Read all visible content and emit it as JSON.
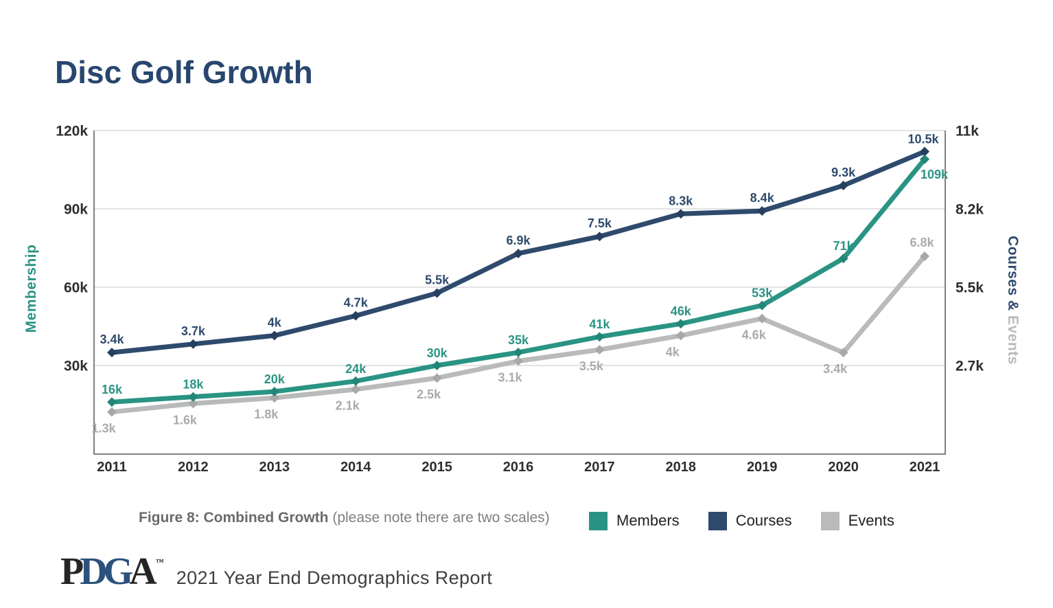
{
  "page": {
    "title": "Disc Golf Growth"
  },
  "chart_data": {
    "type": "line",
    "title": "Disc Golf Growth",
    "x_labels": [
      "2011",
      "2012",
      "2013",
      "2014",
      "2015",
      "2016",
      "2017",
      "2018",
      "2019",
      "2020",
      "2021"
    ],
    "series": [
      {
        "name": "Members",
        "axis": "left",
        "color": "#2a9484",
        "marker_color": "#238578",
        "label_color": "#2a9484",
        "values": [
          16,
          18,
          20,
          24,
          30,
          35,
          41,
          46,
          53,
          71,
          109
        ],
        "labels": [
          "16k",
          "18k",
          "20k",
          "24k",
          "30k",
          "35k",
          "41k",
          "46k",
          "53k",
          "71k",
          "109k"
        ]
      },
      {
        "name": "Courses",
        "axis": "right",
        "color": "#2e4a6c",
        "marker_color": "#263f5e",
        "label_color": "#2e4a6c",
        "values": [
          3.4,
          3.7,
          4,
          4.7,
          5.5,
          6.9,
          7.5,
          8.3,
          8.4,
          9.3,
          10.5
        ],
        "labels": [
          "3.4k",
          "3.7k",
          "4k",
          "4.7k",
          "5.5k",
          "6.9k",
          "7.5k",
          "8.3k",
          "8.4k",
          "9.3k",
          "10.5k"
        ]
      },
      {
        "name": "Events",
        "axis": "right",
        "color": "#b9babc",
        "marker_color": "#a8a8a8",
        "label_color": "#a9abad",
        "values": [
          1.3,
          1.6,
          1.8,
          2.1,
          2.5,
          3.1,
          3.5,
          4,
          4.6,
          3.4,
          6.8
        ],
        "labels": [
          "1.3k",
          "1.6k",
          "1.8k",
          "2.1k",
          "2.5k",
          "3.1k",
          "3.5k",
          "4k",
          "4.6k",
          "3.4k",
          "6.8k"
        ]
      }
    ],
    "left_axis": {
      "title": "Membership",
      "title_color": "#2a9484",
      "ticks": [
        "120k",
        "90k",
        "60k",
        "30k"
      ],
      "tick_values": [
        120,
        90,
        60,
        30
      ]
    },
    "right_axis": {
      "title_primary": "Courses & ",
      "title_secondary": "Events",
      "title_primary_color": "#2e4a6c",
      "title_secondary_color": "#b9babc",
      "ticks": [
        "11k",
        "8.2k",
        "5.5k",
        "2.7k"
      ],
      "tick_values": [
        11,
        8.2,
        5.5,
        2.7
      ]
    },
    "grid": true,
    "legend_position": "bottom"
  },
  "caption": {
    "bold": "Figure 8: Combined Growth",
    "note": "(please note there are two scales)"
  },
  "legend": {
    "items": [
      {
        "label": "Members",
        "color": "#2a9484"
      },
      {
        "label": "Courses",
        "color": "#2e4a6c"
      },
      {
        "label": "Events",
        "color": "#b9babc"
      }
    ]
  },
  "footer": {
    "logo": {
      "letters": [
        "P",
        "D",
        "G",
        "A"
      ],
      "tm": "™"
    },
    "text": "2021  Year End Demographics Report"
  }
}
